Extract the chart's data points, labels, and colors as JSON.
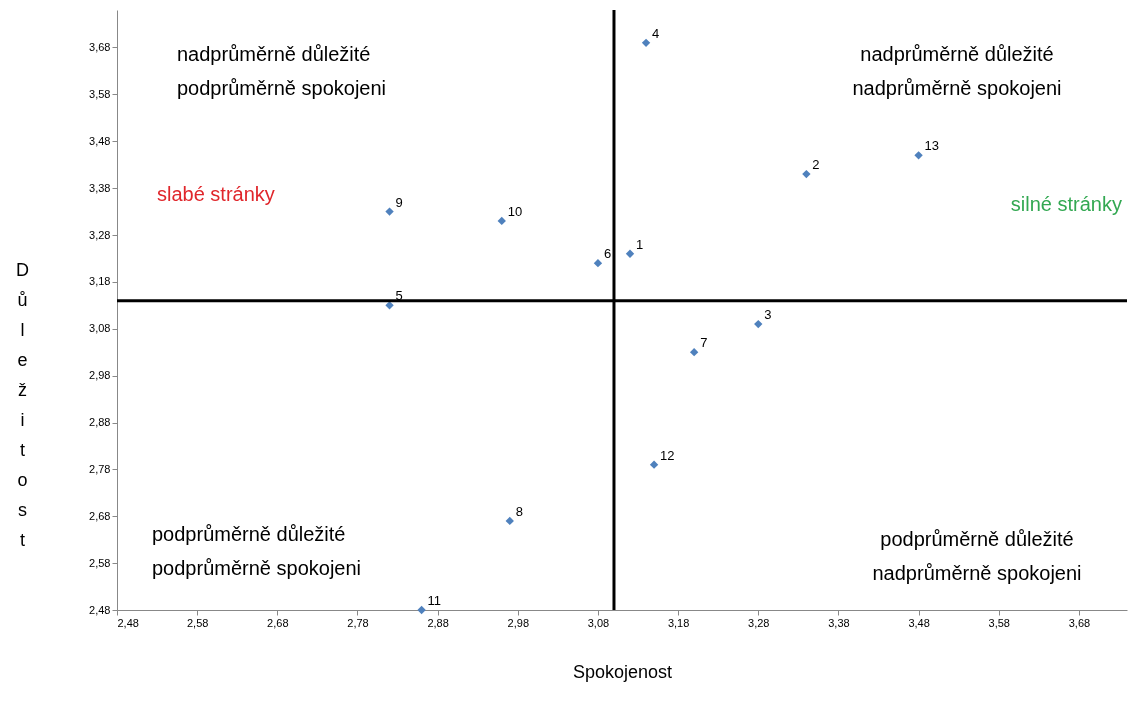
{
  "chart_data": {
    "type": "scatter",
    "xlabel": "Spokojenost",
    "ylabel": "Důležitost",
    "x": [
      3.12,
      3.34,
      3.28,
      3.14,
      2.82,
      3.08,
      3.2,
      2.97,
      2.82,
      2.96,
      2.86,
      3.15,
      3.48
    ],
    "series": [
      {
        "color": "#4f81bd",
        "values": [
          3.24,
          3.41,
          3.09,
          3.69,
          3.13,
          3.22,
          3.03,
          2.67,
          3.33,
          3.31,
          2.48,
          2.79,
          3.45
        ]
      }
    ],
    "marker": "diamond",
    "grid": false,
    "xlim": [
      2.48,
      3.74
    ],
    "ylim": [
      2.48,
      3.76
    ],
    "xticks": [
      {
        "value": 2.48,
        "label": "2,48"
      },
      {
        "value": 2.58,
        "label": "2,58"
      },
      {
        "value": 2.68,
        "label": "2,68"
      },
      {
        "value": 2.78,
        "label": "2,78"
      },
      {
        "value": 2.88,
        "label": "2,88"
      },
      {
        "value": 2.98,
        "label": "2,98"
      },
      {
        "value": 3.08,
        "label": "3,08"
      },
      {
        "value": 3.18,
        "label": "3,18"
      },
      {
        "value": 3.28,
        "label": "3,28"
      },
      {
        "value": 3.38,
        "label": "3,38"
      },
      {
        "value": 3.48,
        "label": "3,48"
      },
      {
        "value": 3.58,
        "label": "3,58"
      },
      {
        "value": 3.68,
        "label": "3,68"
      }
    ],
    "yticks": [
      {
        "value": 2.48,
        "label": "2,48"
      },
      {
        "value": 2.58,
        "label": "2,58"
      },
      {
        "value": 2.68,
        "label": "2,68"
      },
      {
        "value": 2.78,
        "label": "2,78"
      },
      {
        "value": 2.88,
        "label": "2,88"
      },
      {
        "value": 2.98,
        "label": "2,98"
      },
      {
        "value": 3.08,
        "label": "3,08"
      },
      {
        "value": 3.18,
        "label": "3,18"
      },
      {
        "value": 3.28,
        "label": "3,28"
      },
      {
        "value": 3.38,
        "label": "3,38"
      },
      {
        "value": 3.48,
        "label": "3,48"
      },
      {
        "value": 3.58,
        "label": "3,58"
      },
      {
        "value": 3.68,
        "label": "3,68"
      }
    ],
    "ref_lines": [
      {
        "axis": "x",
        "value": 3.1,
        "color": "#000000"
      },
      {
        "axis": "y",
        "value": 3.14,
        "color": "#000000"
      }
    ],
    "annotations": [
      {
        "text": "1",
        "x": 3.12,
        "y": 3.24
      },
      {
        "text": "2",
        "x": 3.34,
        "y": 3.41
      },
      {
        "text": "3",
        "x": 3.28,
        "y": 3.09
      },
      {
        "text": "4",
        "x": 3.14,
        "y": 3.69
      },
      {
        "text": "5",
        "x": 2.82,
        "y": 3.13
      },
      {
        "text": "6",
        "x": 3.08,
        "y": 3.22
      },
      {
        "text": "7",
        "x": 3.2,
        "y": 3.03
      },
      {
        "text": "8",
        "x": 2.97,
        "y": 2.67
      },
      {
        "text": "9",
        "x": 2.82,
        "y": 3.33
      },
      {
        "text": "10",
        "x": 2.96,
        "y": 3.31
      },
      {
        "text": "11",
        "x": 2.86,
        "y": 2.48
      },
      {
        "text": "12",
        "x": 3.15,
        "y": 2.79
      },
      {
        "text": "13",
        "x": 3.48,
        "y": 3.45
      },
      "nadprůměrně důležité\npodprůměrně spokojeni",
      "nadprůměrně důležité\nnadprůměrně spokojeni",
      "slabé stránky",
      "silné stránky",
      "podprůměrně důležité\npodprůměrně spokojeni",
      "podprůměrně důležité\nnadprůměrně spokojeni"
    ]
  }
}
